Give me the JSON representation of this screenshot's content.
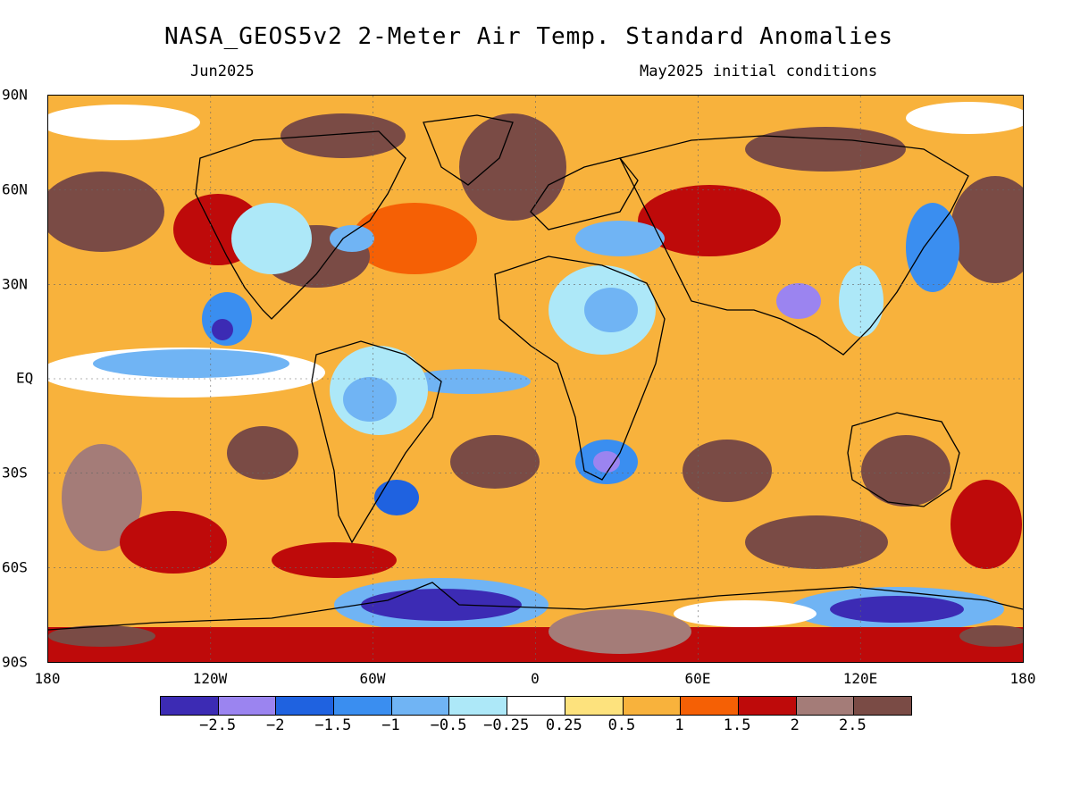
{
  "title": "NASA_GEOS5v2 2-Meter Air Temp. Standard Anomalies",
  "subtitle_left": "Jun2025",
  "subtitle_right": "May2025 initial conditions",
  "lat_labels": [
    "90N",
    "60N",
    "30N",
    "EQ",
    "30S",
    "60S",
    "90S"
  ],
  "lon_labels": [
    "180",
    "120W",
    "60W",
    "0",
    "60E",
    "120E",
    "180"
  ],
  "colorbar": {
    "colors": [
      "#3c2bb4",
      "#9b84f0",
      "#1f62e0",
      "#3a8ef0",
      "#70b4f4",
      "#ade8f8",
      "#ffffff",
      "#fde27d",
      "#f8b23c",
      "#f56005",
      "#be0a0a",
      "#a47c78",
      "#7a4b45"
    ],
    "labels": [
      "−2.5",
      "−2",
      "−1.5",
      "−1",
      "−0.5",
      "−0.25",
      "0.25",
      "0.5",
      "1",
      "1.5",
      "2",
      "2.5"
    ]
  },
  "map": {
    "projection": "equirectangular",
    "lon_range": [
      -180,
      180
    ],
    "lat_range": [
      -90,
      90
    ],
    "variable": "2-meter air temperature standard anomaly"
  }
}
